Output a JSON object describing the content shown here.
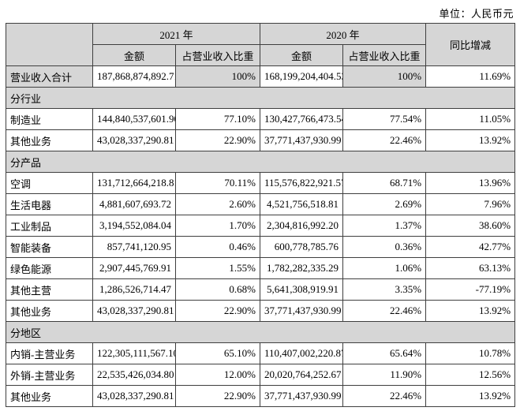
{
  "unit_label": "单位：人民币元",
  "colors": {
    "shaded_cell_bg": "#d6d6d6",
    "border": "#3f3f3f"
  },
  "table": {
    "headers": {
      "year_2021": "2021 年",
      "year_2020": "2020 年",
      "yoy": "同比增减",
      "amount": "金额",
      "proportion": "占营业收入比重"
    },
    "rows": [
      {
        "type": "data",
        "shaded": true,
        "label": "营业收入合计",
        "amount_2021": "187,868,874,892.71",
        "pct_2021": "100%",
        "amount_2020": "168,199,204,404.53",
        "pct_2020": "100%",
        "yoy": "11.69%"
      },
      {
        "type": "section",
        "label": "分行业"
      },
      {
        "type": "data",
        "shaded": false,
        "label": "制造业",
        "amount_2021": "144,840,537,601.90",
        "pct_2021": "77.10%",
        "amount_2020": "130,427,766,473.54",
        "pct_2020": "77.54%",
        "yoy": "11.05%"
      },
      {
        "type": "data",
        "shaded": false,
        "label": "其他业务",
        "amount_2021": "43,028,337,290.81",
        "pct_2021": "22.90%",
        "amount_2020": "37,771,437,930.99",
        "pct_2020": "22.46%",
        "yoy": "13.92%"
      },
      {
        "type": "section",
        "label": "分产品"
      },
      {
        "type": "data",
        "shaded": false,
        "label": "空调",
        "amount_2021": "131,712,664,218.81",
        "pct_2021": "70.11%",
        "amount_2020": "115,576,822,921.57",
        "pct_2020": "68.71%",
        "yoy": "13.96%"
      },
      {
        "type": "data",
        "shaded": false,
        "label": "生活电器",
        "amount_2021": "4,881,607,693.72",
        "pct_2021": "2.60%",
        "amount_2020": "4,521,756,518.81",
        "pct_2020": "2.69%",
        "yoy": "7.96%"
      },
      {
        "type": "data",
        "shaded": false,
        "label": "工业制品",
        "amount_2021": "3,194,552,084.04",
        "pct_2021": "1.70%",
        "amount_2020": "2,304,816,992.20",
        "pct_2020": "1.37%",
        "yoy": "38.60%"
      },
      {
        "type": "data",
        "shaded": false,
        "label": "智能装备",
        "amount_2021": "857,741,120.95",
        "pct_2021": "0.46%",
        "amount_2020": "600,778,785.76",
        "pct_2020": "0.36%",
        "yoy": "42.77%"
      },
      {
        "type": "data",
        "shaded": false,
        "label": "绿色能源",
        "amount_2021": "2,907,445,769.91",
        "pct_2021": "1.55%",
        "amount_2020": "1,782,282,335.29",
        "pct_2020": "1.06%",
        "yoy": "63.13%"
      },
      {
        "type": "data",
        "shaded": false,
        "label": "其他主营",
        "amount_2021": "1,286,526,714.47",
        "pct_2021": "0.68%",
        "amount_2020": "5,641,308,919.91",
        "pct_2020": "3.35%",
        "yoy": "-77.19%"
      },
      {
        "type": "data",
        "shaded": false,
        "label": "其他业务",
        "amount_2021": "43,028,337,290.81",
        "pct_2021": "22.90%",
        "amount_2020": "37,771,437,930.99",
        "pct_2020": "22.46%",
        "yoy": "13.92%"
      },
      {
        "type": "section",
        "label": "分地区"
      },
      {
        "type": "data",
        "shaded": false,
        "label": "内销-主营业务",
        "amount_2021": "122,305,111,567.10",
        "pct_2021": "65.10%",
        "amount_2020": "110,407,002,220.87",
        "pct_2020": "65.64%",
        "yoy": "10.78%"
      },
      {
        "type": "data",
        "shaded": false,
        "label": "外销-主营业务",
        "amount_2021": "22,535,426,034.80",
        "pct_2021": "12.00%",
        "amount_2020": "20,020,764,252.67",
        "pct_2020": "11.90%",
        "yoy": "12.56%"
      },
      {
        "type": "data",
        "shaded": false,
        "label": "其他业务",
        "amount_2021": "43,028,337,290.81",
        "pct_2021": "22.90%",
        "amount_2020": "37,771,437,930.99",
        "pct_2020": "22.46%",
        "yoy": "13.92%"
      }
    ]
  }
}
